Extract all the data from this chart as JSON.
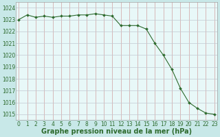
{
  "x": [
    0,
    1,
    2,
    3,
    4,
    5,
    6,
    7,
    8,
    9,
    10,
    11,
    12,
    13,
    14,
    15,
    16,
    17,
    18,
    19,
    20,
    21,
    22,
    23
  ],
  "y": [
    1023.0,
    1023.4,
    1023.2,
    1023.3,
    1023.2,
    1023.3,
    1023.3,
    1023.4,
    1023.4,
    1023.5,
    1023.4,
    1023.3,
    1022.5,
    1022.5,
    1022.5,
    1022.2,
    1021.0,
    1020.0,
    1018.8,
    1017.2,
    1016.0,
    1015.5,
    1015.1,
    1015.0
  ],
  "line_color": "#2d6a2d",
  "marker": "D",
  "marker_size": 2.0,
  "bg_color": "#c8e8e8",
  "plot_bg": "#e8f8f8",
  "grid_color_v": "#d0a0a0",
  "grid_color_h": "#c0c8d0",
  "title": "Graphe pression niveau de la mer (hPa)",
  "ylim": [
    1014.5,
    1024.5
  ],
  "yticks": [
    1015,
    1016,
    1017,
    1018,
    1019,
    1020,
    1021,
    1022,
    1023,
    1024
  ],
  "xticks": [
    0,
    1,
    2,
    3,
    4,
    5,
    6,
    7,
    8,
    9,
    10,
    11,
    12,
    13,
    14,
    15,
    16,
    17,
    18,
    19,
    20,
    21,
    22,
    23
  ],
  "xlim": [
    -0.3,
    23.3
  ],
  "title_fontsize": 7.0,
  "tick_fontsize": 5.5,
  "title_color": "#2d6a2d",
  "tick_color": "#2d6a2d",
  "spine_color": "#a0a0a0"
}
